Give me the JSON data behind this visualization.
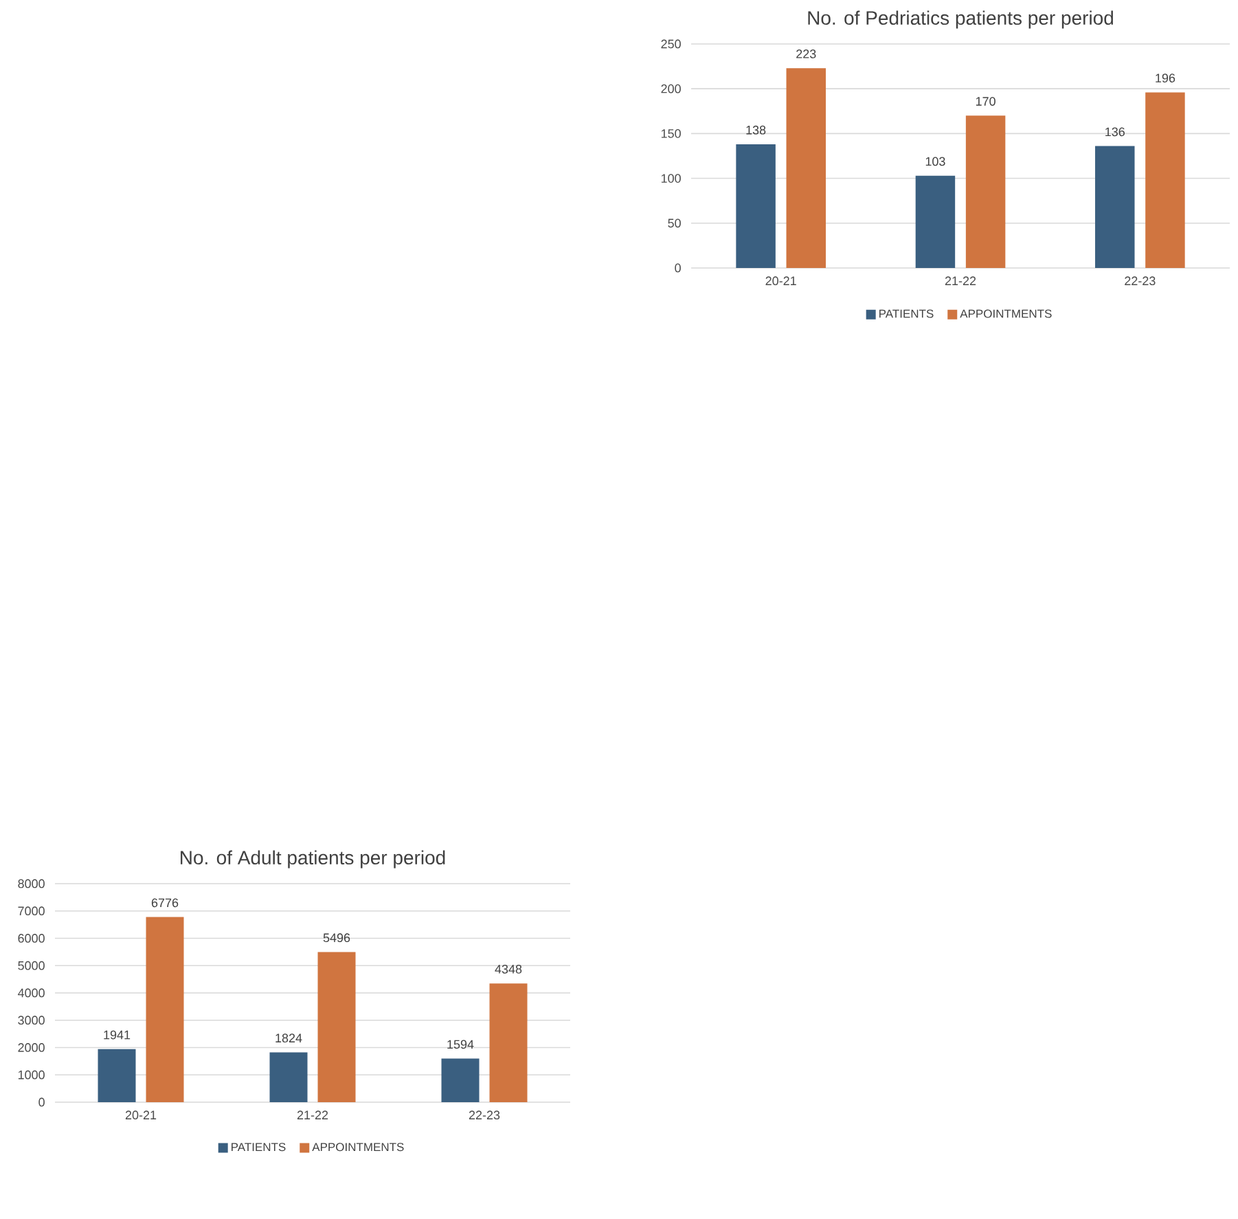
{
  "chart_data": [
    {
      "type": "bar",
      "title": "No. of Pedriatics patients per period",
      "categories": [
        "20-21",
        "21-22",
        "22-23"
      ],
      "series": [
        {
          "name": "PATIENTS",
          "color": "#3a5f80",
          "values": [
            138,
            103,
            136
          ]
        },
        {
          "name": "APPOINTMENTS",
          "color": "#d07540",
          "values": [
            223,
            170,
            196
          ]
        }
      ],
      "ylim": [
        0,
        250
      ],
      "yticks": [
        0,
        50,
        100,
        150,
        200,
        250
      ],
      "grid": "y",
      "legend": "bottom",
      "data_labels": true
    },
    {
      "type": "bar",
      "title": "No. of Adult patients per period",
      "categories": [
        "20-21",
        "21-22",
        "22-23"
      ],
      "series": [
        {
          "name": "PATIENTS",
          "color": "#3a5f80",
          "values": [
            1941,
            1824,
            1594
          ]
        },
        {
          "name": "APPOINTMENTS",
          "color": "#d07540",
          "values": [
            6776,
            5496,
            4348
          ]
        }
      ],
      "ylim": [
        0,
        8000
      ],
      "yticks": [
        0,
        1000,
        2000,
        3000,
        4000,
        5000,
        6000,
        7000,
        8000
      ],
      "grid": "y",
      "legend": "bottom",
      "data_labels": true
    }
  ]
}
